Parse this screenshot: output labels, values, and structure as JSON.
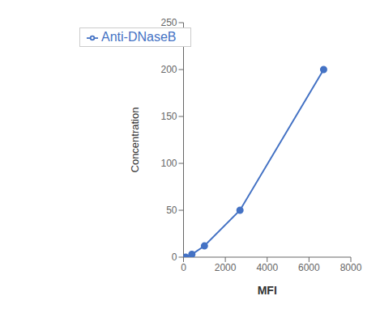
{
  "chart_data": {
    "type": "line",
    "x": [
      100,
      400,
      1000,
      2700,
      6700
    ],
    "series": [
      {
        "name": "Anti-DNaseB",
        "color": "#4472C4",
        "values": [
          0,
          3,
          12,
          50,
          200
        ]
      }
    ],
    "xlabel": "MFI",
    "ylabel": "Concentration",
    "xlim": [
      0,
      8000
    ],
    "ylim": [
      0,
      250
    ],
    "xticks": [
      0,
      2000,
      4000,
      6000,
      8000
    ],
    "yticks": [
      0,
      50,
      100,
      150,
      200,
      250
    ],
    "grid": false,
    "legend": "upper left",
    "marker": "circle"
  }
}
